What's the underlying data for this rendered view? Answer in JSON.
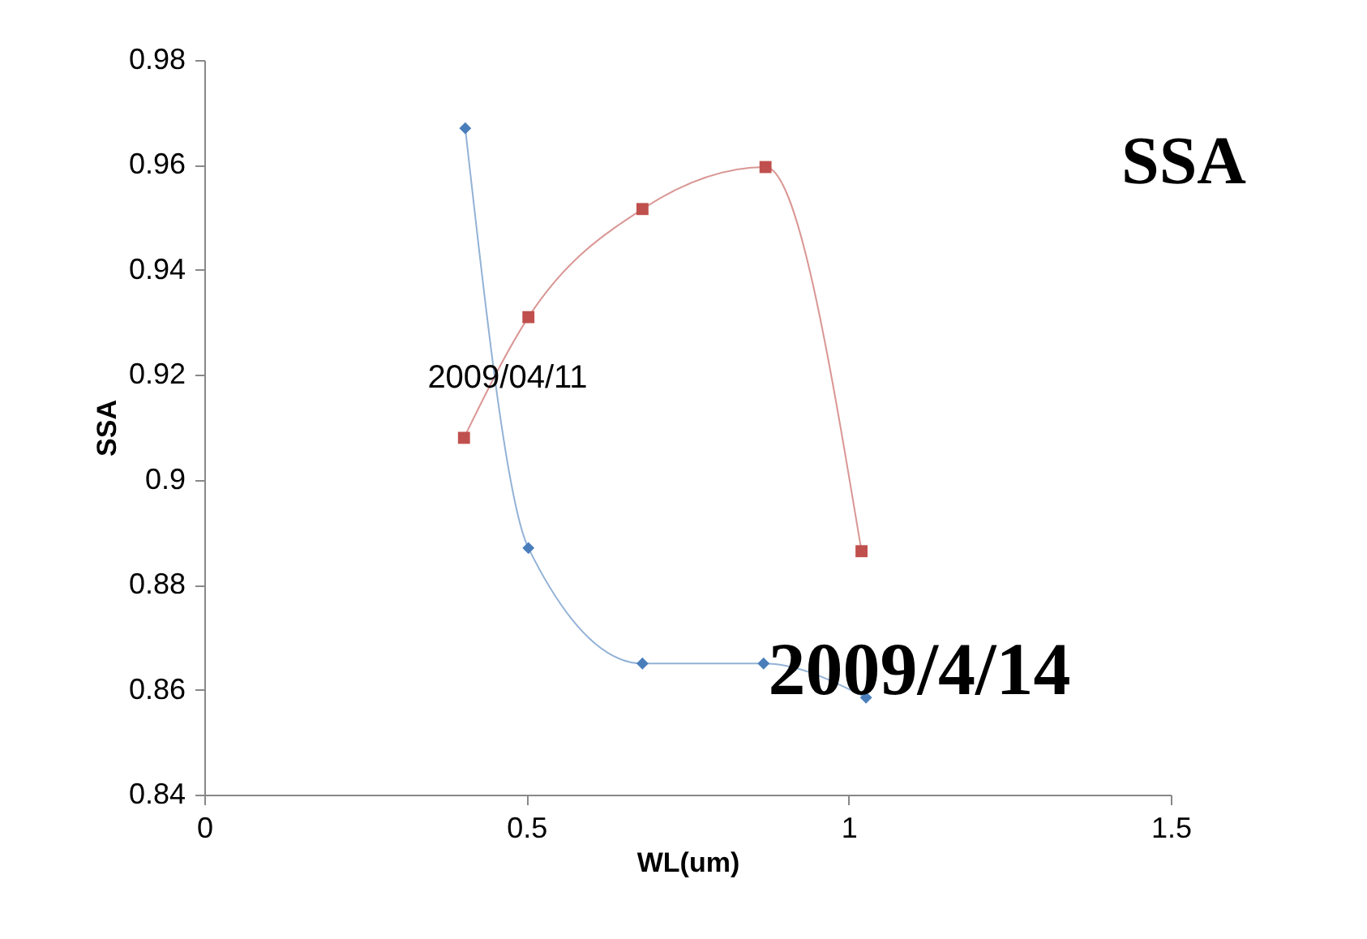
{
  "chart_data": {
    "type": "line",
    "xlabel": "WL(um)",
    "ylabel": "SSA",
    "xlim": [
      0,
      1.5
    ],
    "xticks": [
      0,
      0.5,
      1,
      1.5
    ],
    "ylim": [
      0.84,
      0.98
    ],
    "yticks": [
      0.84,
      0.86,
      0.88,
      0.9,
      0.92,
      0.94,
      0.96,
      0.98
    ],
    "grid": false,
    "line_style": "solid",
    "series": [
      {
        "color": "#4a7ebb",
        "marker": "diamond",
        "x": [
          0.405,
          0.503,
          0.68,
          0.868,
          1.027
        ],
        "values": [
          0.967,
          0.887,
          0.865,
          0.865,
          0.8585
        ]
      },
      {
        "color": "#c0504d",
        "marker": "square",
        "x": [
          0.403,
          0.503,
          0.68,
          0.871,
          1.02
        ],
        "values": [
          0.908,
          0.931,
          0.9516,
          0.9596,
          0.8864
        ]
      }
    ],
    "annotations": [
      "SSA",
      "2009/04/11",
      "2009/4/14"
    ]
  }
}
